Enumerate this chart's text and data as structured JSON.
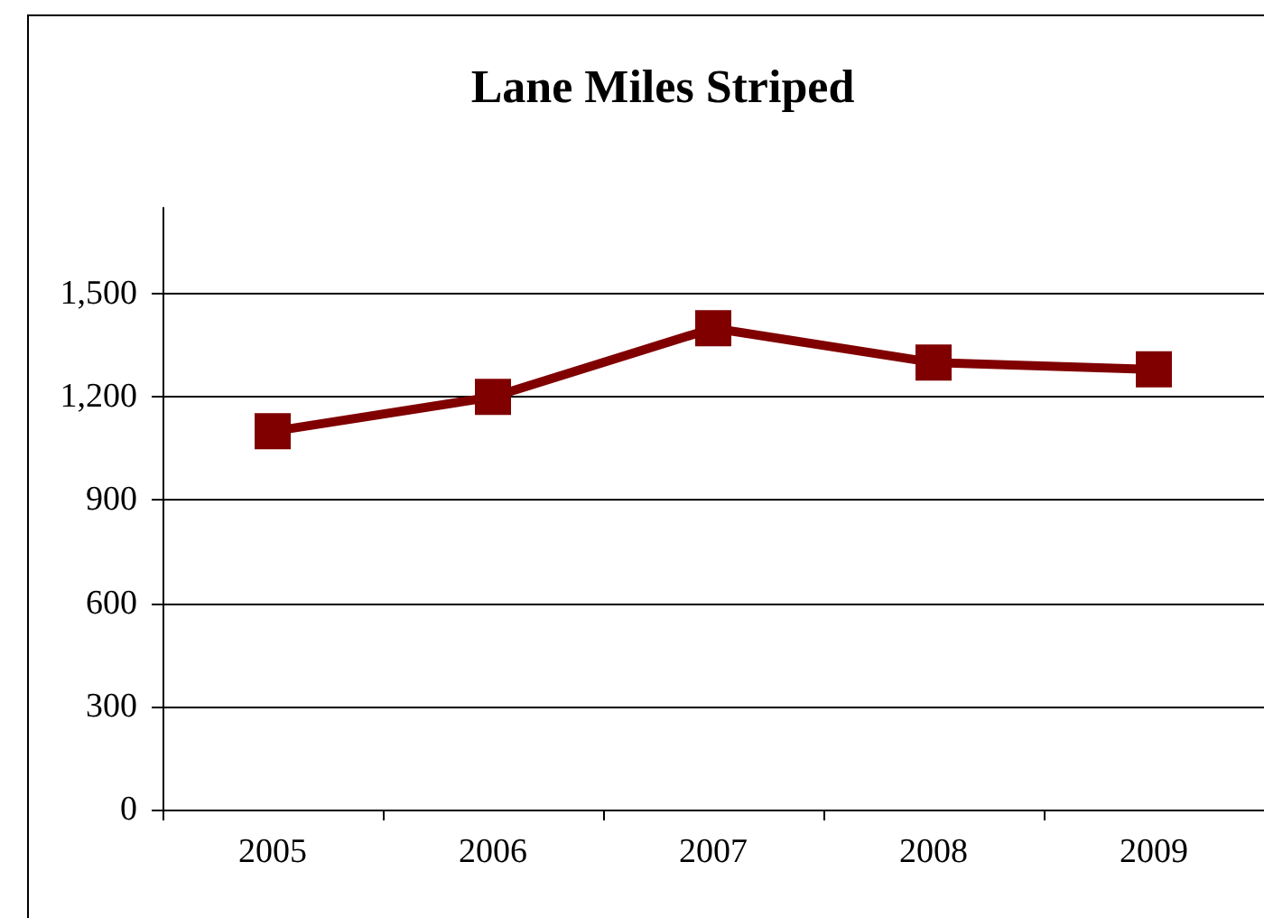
{
  "chart_data": {
    "type": "line",
    "title": "Lane Miles Striped",
    "categories": [
      "2005",
      "2006",
      "2007",
      "2008",
      "2009"
    ],
    "series": [
      {
        "color": "#800000",
        "values": [
          1100,
          1200,
          1400,
          1300,
          1280
        ]
      }
    ],
    "ylim": [
      0,
      1750
    ],
    "yticks": [
      0,
      300,
      600,
      900,
      {
        "value": 1200,
        "label": "1,200"
      },
      {
        "value": 1500,
        "label": "1,500"
      }
    ],
    "grid": "y",
    "marker": "square",
    "line_style": "solid"
  }
}
